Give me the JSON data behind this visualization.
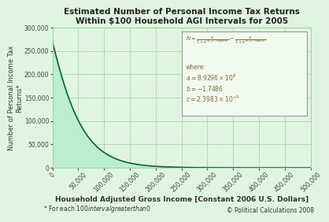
{
  "title_line1": "Estimated Number of Personal Income Tax Returns",
  "title_line2": "Within $100 Household AGI Intervals for 2005",
  "xlabel": "Household Adjusted Gross Income [Constant 2006 U.S. Dollars]",
  "ylabel": "Number of Personal Income Tax\nReturns*",
  "footnote_left": "* For each $100 interval greater than $0",
  "footnote_right": "© Political Calculations 2008",
  "a": 892960000.0,
  "b": -1.7486,
  "c": 2.3983e-05,
  "x_min": 0,
  "x_max": 500000,
  "y_min": 0,
  "y_max": 300000,
  "curve_color": "#006633",
  "fill_color": "#bbeecc",
  "bg_color": "#e0f5e0",
  "grid_color": "#99cc99",
  "box_bg": "#f0fbf0",
  "box_edge": "#999999",
  "title_color": "#222222",
  "label_color": "#333333",
  "annotation_color": "#886633",
  "tick_color": "#444444",
  "xticks": [
    0,
    50000,
    100000,
    150000,
    200000,
    250000,
    300000,
    350000,
    400000,
    450000,
    500000
  ],
  "yticks": [
    0,
    50000,
    100000,
    150000,
    200000,
    250000,
    300000
  ]
}
